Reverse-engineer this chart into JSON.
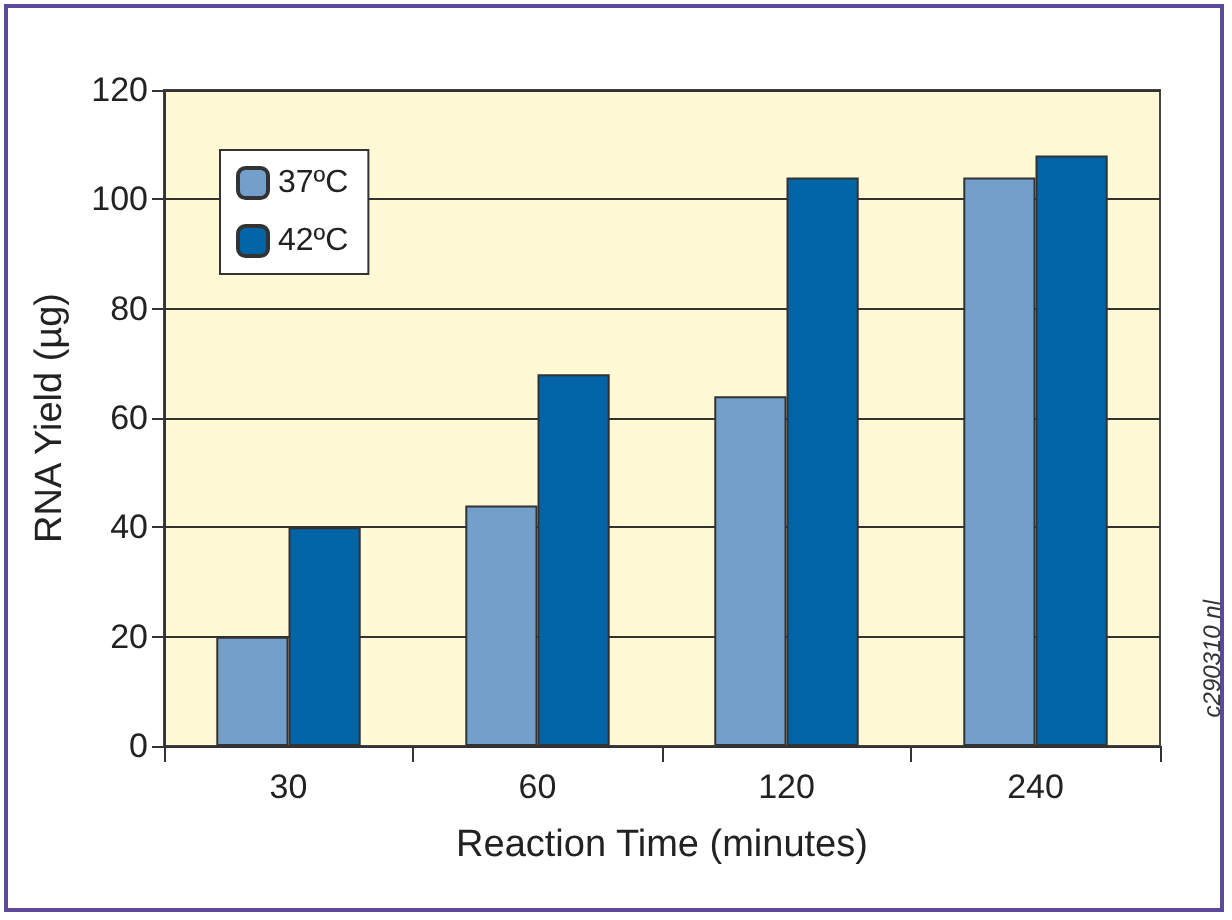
{
  "chart_data": {
    "type": "bar",
    "xlabel": "Reaction Time (minutes)",
    "ylabel": "RNA Yield (µg)",
    "categories": [
      "30",
      "60",
      "120",
      "240"
    ],
    "series": [
      {
        "name": "37ºC",
        "color": "#739fcb",
        "values": [
          20,
          44,
          64,
          104
        ]
      },
      {
        "name": "42ºC",
        "color": "#0064a6",
        "values": [
          40,
          68,
          104,
          108
        ]
      }
    ],
    "ylim": [
      0,
      120
    ],
    "yticks": [
      0,
      20,
      40,
      60,
      80,
      100,
      120
    ],
    "grid": "y",
    "legend": "top left",
    "annotations": [
      "c290310 nl"
    ]
  }
}
